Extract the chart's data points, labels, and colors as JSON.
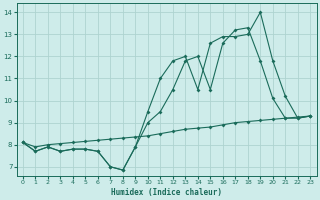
{
  "xlabel": "Humidex (Indice chaleur)",
  "background_color": "#ceecea",
  "grid_color": "#aed4d0",
  "line_color": "#1a6b5a",
  "xlim": [
    -0.5,
    23.5
  ],
  "ylim": [
    6.6,
    14.4
  ],
  "xticks": [
    0,
    1,
    2,
    3,
    4,
    5,
    6,
    7,
    8,
    9,
    10,
    11,
    12,
    13,
    14,
    15,
    16,
    17,
    18,
    19,
    20,
    21,
    22,
    23
  ],
  "yticks": [
    7,
    8,
    9,
    10,
    11,
    12,
    13,
    14
  ],
  "line1_x": [
    0,
    1,
    2,
    3,
    4,
    5,
    6,
    7,
    8,
    9,
    10,
    11,
    12,
    13,
    14,
    15,
    16,
    17,
    18,
    19,
    20,
    21,
    22,
    23
  ],
  "line1_y": [
    8.1,
    7.7,
    7.9,
    7.7,
    7.8,
    7.8,
    7.7,
    7.0,
    6.85,
    7.9,
    9.5,
    11.0,
    11.8,
    12.0,
    10.5,
    12.6,
    12.9,
    12.9,
    13.0,
    14.0,
    11.8,
    10.2,
    9.2,
    9.3
  ],
  "line2_x": [
    0,
    1,
    2,
    3,
    4,
    5,
    6,
    7,
    8,
    9,
    10,
    11,
    12,
    13,
    14,
    15,
    16,
    17,
    18,
    19,
    20,
    21,
    22,
    23
  ],
  "line2_y": [
    8.1,
    7.7,
    7.9,
    7.7,
    7.8,
    7.8,
    7.7,
    7.0,
    6.85,
    7.9,
    9.0,
    9.5,
    10.5,
    11.8,
    12.0,
    10.5,
    12.6,
    13.2,
    13.3,
    11.8,
    10.1,
    9.2,
    9.2,
    9.3
  ],
  "line3_x": [
    0,
    1,
    2,
    3,
    4,
    5,
    6,
    7,
    8,
    9,
    10,
    11,
    12,
    13,
    14,
    15,
    16,
    17,
    18,
    19,
    20,
    21,
    22,
    23
  ],
  "line3_y": [
    8.1,
    7.9,
    8.0,
    8.05,
    8.1,
    8.15,
    8.2,
    8.25,
    8.3,
    8.35,
    8.4,
    8.5,
    8.6,
    8.7,
    8.75,
    8.8,
    8.9,
    9.0,
    9.05,
    9.1,
    9.15,
    9.2,
    9.25,
    9.3
  ]
}
